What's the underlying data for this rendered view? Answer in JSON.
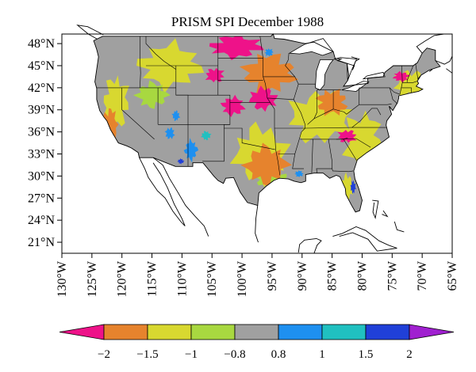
{
  "title": "PRISM SPI December 1988",
  "colors": {
    "frame": "#000000",
    "background": "#ffffff",
    "land_gray": "#a0a0a0",
    "water": "#ffffff",
    "state_line": "#000000"
  },
  "map": {
    "lon_range": [
      -130,
      -65
    ],
    "lat_range": [
      19.5,
      49.3
    ],
    "lat_ticks": [
      {
        "value": 48,
        "label": "48°N"
      },
      {
        "value": 45,
        "label": "45°N"
      },
      {
        "value": 42,
        "label": "42°N"
      },
      {
        "value": 39,
        "label": "39°N"
      },
      {
        "value": 36,
        "label": "36°N"
      },
      {
        "value": 33,
        "label": "33°N"
      },
      {
        "value": 30,
        "label": "30°N"
      },
      {
        "value": 27,
        "label": "27°N"
      },
      {
        "value": 24,
        "label": "24°N"
      },
      {
        "value": 21,
        "label": "21°N"
      }
    ],
    "lon_ticks": [
      {
        "value": -130,
        "label": "130°W"
      },
      {
        "value": -125,
        "label": "125°W"
      },
      {
        "value": -120,
        "label": "120°W"
      },
      {
        "value": -115,
        "label": "115°W"
      },
      {
        "value": -110,
        "label": "110°W"
      },
      {
        "value": -105,
        "label": "105°W"
      },
      {
        "value": -100,
        "label": "100°W"
      },
      {
        "value": -95,
        "label": "95°W"
      },
      {
        "value": -90,
        "label": "90°W"
      },
      {
        "value": -85,
        "label": "85°W"
      },
      {
        "value": -80,
        "label": "80°W"
      },
      {
        "value": -75,
        "label": "75°W"
      },
      {
        "value": -70,
        "label": "70°W"
      },
      {
        "value": -65,
        "label": "65°W"
      }
    ]
  },
  "colorbar": {
    "bins": [
      {
        "color": "#ee1289"
      },
      {
        "color": "#e6832d"
      },
      {
        "color": "#d8d830"
      },
      {
        "color": "#a8d840"
      },
      {
        "color": "#a0a0a0"
      },
      {
        "color": "#1e90f0"
      },
      {
        "color": "#20c0c0"
      },
      {
        "color": "#2040d8"
      },
      {
        "color": "#a020d0"
      }
    ],
    "labels": [
      "−2",
      "−1.5",
      "−1",
      "−0.8",
      "0.8",
      "1",
      "1.5",
      "2"
    ]
  },
  "anomaly_regions": [
    {
      "level": 0,
      "lon": -101,
      "lat": 47.6,
      "rx": 5,
      "ry": 1.8
    },
    {
      "level": 0,
      "lon": -96.5,
      "lat": 40.5,
      "rx": 2.6,
      "ry": 1.8
    },
    {
      "level": 0,
      "lon": -101.5,
      "lat": 39.5,
      "rx": 2.2,
      "ry": 1.5
    },
    {
      "level": 0,
      "lon": -82.5,
      "lat": 35.4,
      "rx": 1.8,
      "ry": 1.0
    },
    {
      "level": 0,
      "lon": -104.5,
      "lat": 43.7,
      "rx": 1.8,
      "ry": 1.1
    },
    {
      "level": 0,
      "lon": -73.5,
      "lat": 43.5,
      "rx": 1.5,
      "ry": 0.8
    },
    {
      "level": 1,
      "lon": -96,
      "lat": 31.5,
      "rx": 4,
      "ry": 3
    },
    {
      "level": 1,
      "lon": -95.5,
      "lat": 44,
      "rx": 5,
      "ry": 3
    },
    {
      "level": 1,
      "lon": -122,
      "lat": 37,
      "rx": 1.5,
      "ry": 2.5
    },
    {
      "level": 1,
      "lon": -85,
      "lat": 40,
      "rx": 3,
      "ry": 2
    },
    {
      "level": 2,
      "lon": -97,
      "lat": 33,
      "rx": 5,
      "ry": 4.5
    },
    {
      "level": 2,
      "lon": -112,
      "lat": 45,
      "rx": 6,
      "ry": 3.5
    },
    {
      "level": 2,
      "lon": -87,
      "lat": 38,
      "rx": 6,
      "ry": 4
    },
    {
      "level": 2,
      "lon": -80,
      "lat": 35,
      "rx": 4,
      "ry": 4
    },
    {
      "level": 2,
      "lon": -72,
      "lat": 42.5,
      "rx": 3,
      "ry": 2.2
    },
    {
      "level": 2,
      "lon": -121,
      "lat": 40,
      "rx": 2.5,
      "ry": 4
    },
    {
      "level": 2,
      "lon": -82.5,
      "lat": 28.5,
      "rx": 1.3,
      "ry": 2
    },
    {
      "level": 3,
      "lon": -95,
      "lat": 29.5,
      "rx": 3,
      "ry": 1.6
    },
    {
      "level": 3,
      "lon": -115,
      "lat": 41,
      "rx": 3,
      "ry": 2
    },
    {
      "level": 5,
      "lon": -108.5,
      "lat": 33.5,
      "rx": 1.2,
      "ry": 1.6
    },
    {
      "level": 5,
      "lon": -111,
      "lat": 38.2,
      "rx": 0.7,
      "ry": 0.8
    },
    {
      "level": 5,
      "lon": -90.5,
      "lat": 30.3,
      "rx": 0.8,
      "ry": 0.5
    },
    {
      "level": 5,
      "lon": -112,
      "lat": 35.8,
      "rx": 0.9,
      "ry": 0.9
    },
    {
      "level": 5,
      "lon": -95.5,
      "lat": 46.8,
      "rx": 0.8,
      "ry": 0.6
    },
    {
      "level": 6,
      "lon": -106,
      "lat": 35.5,
      "rx": 0.9,
      "ry": 0.7
    },
    {
      "level": 7,
      "lon": -81.5,
      "lat": 28.5,
      "rx": 0.5,
      "ry": 1.0
    },
    {
      "level": 7,
      "lon": -110.2,
      "lat": 32,
      "rx": 0.6,
      "ry": 0.4
    }
  ]
}
